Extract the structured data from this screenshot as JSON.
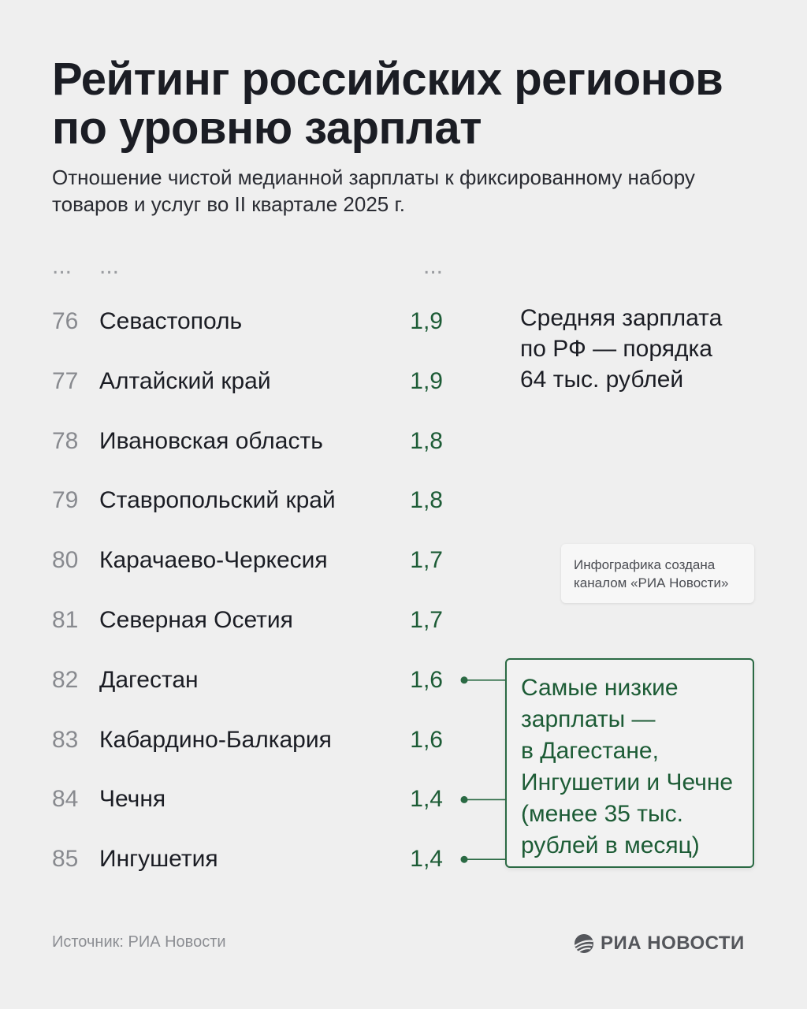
{
  "header": {
    "title_lines": [
      "Рейтинг российских регионов",
      "по уровню зарплат"
    ],
    "subtitle_lines": [
      "Отношение чистой медианной зарплаты к фиксированному набору",
      "товаров и услуг во II квартале 2025 г."
    ]
  },
  "ellipsis": "...",
  "chart_data": {
    "type": "table",
    "title": "Рейтинг российских регионов по уровню зарплат",
    "subtitle": "Отношение чистой медианной зарплаты к фиксированному набору товаров и услуг во II квартале 2025 г.",
    "rows": [
      {
        "rank": "76",
        "region": "Севастополь",
        "value": 1.9,
        "value_label": "1,9"
      },
      {
        "rank": "77",
        "region": "Алтайский край",
        "value": 1.9,
        "value_label": "1,9"
      },
      {
        "rank": "78",
        "region": "Ивановская область",
        "value": 1.8,
        "value_label": "1,8"
      },
      {
        "rank": "79",
        "region": "Ставропольский край",
        "value": 1.8,
        "value_label": "1,8"
      },
      {
        "rank": "80",
        "region": "Карачаево-Черкесия",
        "value": 1.7,
        "value_label": "1,7"
      },
      {
        "rank": "81",
        "region": "Северная Осетия",
        "value": 1.7,
        "value_label": "1,7"
      },
      {
        "rank": "82",
        "region": "Дагестан",
        "value": 1.6,
        "value_label": "1,6"
      },
      {
        "rank": "83",
        "region": "Кабардино-Балкария",
        "value": 1.6,
        "value_label": "1,6"
      },
      {
        "rank": "84",
        "region": "Чечня",
        "value": 1.4,
        "value_label": "1,4"
      },
      {
        "rank": "85",
        "region": "Ингушетия",
        "value": 1.4,
        "value_label": "1,4"
      }
    ],
    "highlighted_ranks": [
      "82",
      "84",
      "85"
    ]
  },
  "avg_note_lines": [
    "Средняя зарплата",
    "по РФ — порядка",
    "64 тыс. рублей"
  ],
  "credit_lines": [
    "Инфографика создана",
    "каналом «РИА Новости»"
  ],
  "callout_lines": [
    "Самые низкие",
    "зарплаты —",
    "в Дагестане,",
    "Ингушетии и Чечне",
    "(менее 35 тыс.",
    "рублей в месяц)"
  ],
  "footer": {
    "source": "Источник: РИА Новости",
    "logo_text": "РИА НОВОСТИ",
    "logo_icon": "ria-globe-icon"
  },
  "colors": {
    "background": "#efefef",
    "text": "#1b1d24",
    "rank": "#888a8f",
    "value": "#1d5c36",
    "callout_border": "#2b6a44"
  }
}
